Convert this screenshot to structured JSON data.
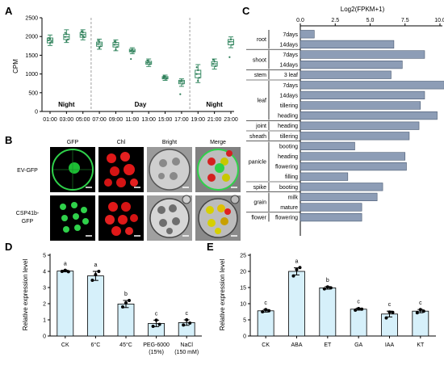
{
  "figure": {
    "panels": {
      "a": "A",
      "b": "B",
      "c": "C",
      "d": "D",
      "e": "E"
    }
  },
  "chart_data": [
    {
      "id": "A",
      "type": "box",
      "ylabel": "CPM",
      "ylim": [
        0,
        2500
      ],
      "yticks": [
        0,
        500,
        1000,
        1500,
        2000,
        2500
      ],
      "categories": [
        "01:00",
        "03:00",
        "05:00",
        "07:00",
        "09:00",
        "11:00",
        "13:00",
        "15:00",
        "17:00",
        "19:00",
        "21:00",
        "23:00"
      ],
      "boxes": [
        {
          "median": 1900,
          "q1": 1830,
          "q3": 1960,
          "min": 1760,
          "max": 2040,
          "points": [
            1900,
            1940,
            1860,
            1960,
            1830
          ]
        },
        {
          "median": 1990,
          "q1": 1920,
          "q3": 2060,
          "min": 1840,
          "max": 2180,
          "points": [
            1990,
            2060,
            1920,
            2100,
            1880
          ]
        },
        {
          "median": 2050,
          "q1": 1980,
          "q3": 2110,
          "min": 1910,
          "max": 2180,
          "points": [
            2050,
            2110,
            1980,
            2140,
            2010
          ]
        },
        {
          "median": 1800,
          "q1": 1740,
          "q3": 1850,
          "min": 1660,
          "max": 1930,
          "points": [
            1800,
            1850,
            1740,
            1890,
            1700
          ]
        },
        {
          "median": 1780,
          "q1": 1720,
          "q3": 1840,
          "min": 1620,
          "max": 1910,
          "points": [
            1780,
            1840,
            1720,
            1870,
            1650
          ]
        },
        {
          "median": 1620,
          "q1": 1590,
          "q3": 1660,
          "min": 1540,
          "max": 1700,
          "points": [
            1620,
            1650,
            1590,
            1400
          ]
        },
        {
          "median": 1300,
          "q1": 1260,
          "q3": 1340,
          "min": 1200,
          "max": 1400,
          "points": [
            1300,
            1340,
            1260,
            1360
          ]
        },
        {
          "median": 900,
          "q1": 870,
          "q3": 930,
          "min": 830,
          "max": 970,
          "points": [
            900,
            930,
            870,
            940
          ]
        },
        {
          "median": 790,
          "q1": 740,
          "q3": 830,
          "min": 670,
          "max": 870,
          "points": [
            790,
            830,
            740,
            460
          ]
        },
        {
          "median": 1000,
          "q1": 900,
          "q3": 1100,
          "min": 770,
          "max": 1250,
          "points": [
            1000,
            1100,
            900,
            1180,
            820
          ]
        },
        {
          "median": 1270,
          "q1": 1210,
          "q3": 1330,
          "min": 1130,
          "max": 1400,
          "points": [
            1270,
            1330,
            1210,
            1380
          ]
        },
        {
          "median": 1860,
          "q1": 1780,
          "q3": 1920,
          "min": 1700,
          "max": 1990,
          "points": [
            1860,
            1920,
            1780,
            1450
          ]
        }
      ],
      "periods": [
        {
          "label": "Night",
          "from": 0,
          "to": 2
        },
        {
          "label": "Day",
          "from": 3,
          "to": 8
        },
        {
          "label": "Night",
          "from": 9,
          "to": 11
        }
      ],
      "colors": {
        "box": "#3a8c66",
        "fill": "#ffffff",
        "point": "#2e7d58"
      }
    },
    {
      "id": "C",
      "type": "bar",
      "orientation": "horizontal",
      "title": "Log2(FPKM+1)",
      "xlim": [
        0,
        10
      ],
      "xticks": [
        "0.0",
        "2.5",
        "5.0",
        "7.5",
        "10.0"
      ],
      "color": "#8d9db6",
      "groups": [
        {
          "name": "root",
          "items": [
            {
              "label": "7days",
              "value": 1.0
            },
            {
              "label": "14days",
              "value": 6.7
            }
          ]
        },
        {
          "name": "shoot",
          "items": [
            {
              "label": "7days",
              "value": 8.9
            },
            {
              "label": "14days",
              "value": 7.3
            }
          ]
        },
        {
          "name": "stem",
          "items": [
            {
              "label": "3 leaf",
              "value": 6.5
            }
          ]
        },
        {
          "name": "leaf",
          "items": [
            {
              "label": "7days",
              "value": 10.3
            },
            {
              "label": "14days",
              "value": 8.9
            },
            {
              "label": "tillering",
              "value": 8.6
            },
            {
              "label": "heading",
              "value": 9.8
            }
          ]
        },
        {
          "name": "joint",
          "items": [
            {
              "label": "heading",
              "value": 8.5
            }
          ]
        },
        {
          "name": "sheath",
          "items": [
            {
              "label": "tillering",
              "value": 7.8
            }
          ]
        },
        {
          "name": "panicle",
          "items": [
            {
              "label": "booting",
              "value": 3.9
            },
            {
              "label": "heading",
              "value": 7.5
            },
            {
              "label": "flowering",
              "value": 7.6
            },
            {
              "label": "filling",
              "value": 3.4
            }
          ]
        },
        {
          "name": "spike",
          "items": [
            {
              "label": "booting",
              "value": 5.9
            }
          ]
        },
        {
          "name": "grain",
          "items": [
            {
              "label": "milk",
              "value": 5.5
            },
            {
              "label": "mature",
              "value": 4.4
            }
          ]
        },
        {
          "name": "flower",
          "items": [
            {
              "label": "flowering",
              "value": 4.4
            }
          ]
        }
      ]
    },
    {
      "id": "D",
      "type": "bar",
      "ylabel": "Relative expression level",
      "ylim": [
        0,
        5
      ],
      "yticks": [
        0,
        1,
        2,
        3,
        4,
        5
      ],
      "categories": [
        "CK",
        "6°C",
        "45°C",
        "PEG-6000 (15%)",
        "NaCl (150 mM)"
      ],
      "tick_lines": [
        [
          "CK"
        ],
        [
          "6°C"
        ],
        [
          "45°C"
        ],
        [
          "PEG-6000",
          "(15%)"
        ],
        [
          "NaCl",
          "(150 mM)"
        ]
      ],
      "values": [
        4.02,
        3.72,
        1.98,
        0.78,
        0.83
      ],
      "errors": [
        0.05,
        0.28,
        0.22,
        0.2,
        0.17
      ],
      "points": [
        [
          4.0,
          4.07,
          3.98
        ],
        [
          3.45,
          3.8,
          4.0
        ],
        [
          1.8,
          2.05,
          2.2
        ],
        [
          0.6,
          0.98,
          0.72
        ],
        [
          0.68,
          1.0,
          0.8
        ]
      ],
      "letters": [
        "a",
        "a",
        "b",
        "c",
        "c"
      ],
      "color": "#d6f0fa"
    },
    {
      "id": "E",
      "type": "bar",
      "ylabel": "Relative expression level",
      "ylim": [
        0,
        25
      ],
      "yticks": [
        0,
        5,
        10,
        15,
        20,
        25
      ],
      "categories": [
        "CK",
        "ABA",
        "ET",
        "GA",
        "IAA",
        "KT"
      ],
      "values": [
        7.8,
        20.0,
        14.9,
        8.3,
        6.8,
        7.7
      ],
      "errors": [
        0.4,
        1.1,
        0.4,
        0.3,
        0.9,
        0.5
      ],
      "points": [
        [
          7.5,
          8.2,
          7.8
        ],
        [
          18.6,
          20.6,
          21.2
        ],
        [
          14.6,
          15.2,
          14.9
        ],
        [
          8.0,
          8.5,
          8.3
        ],
        [
          5.6,
          7.4,
          7.3
        ],
        [
          7.2,
          8.2,
          7.7
        ]
      ],
      "letters": [
        "c",
        "a",
        "b",
        "c",
        "c",
        "c"
      ],
      "color": "#d6f0fa"
    }
  ],
  "micrographs": {
    "columns": [
      "GFP",
      "Chl",
      "Bright",
      "Merge"
    ],
    "rows": [
      {
        "label_lines": [
          "EV-GFP"
        ]
      },
      {
        "label_lines": [
          "CSP41b-",
          "GFP"
        ]
      }
    ]
  }
}
